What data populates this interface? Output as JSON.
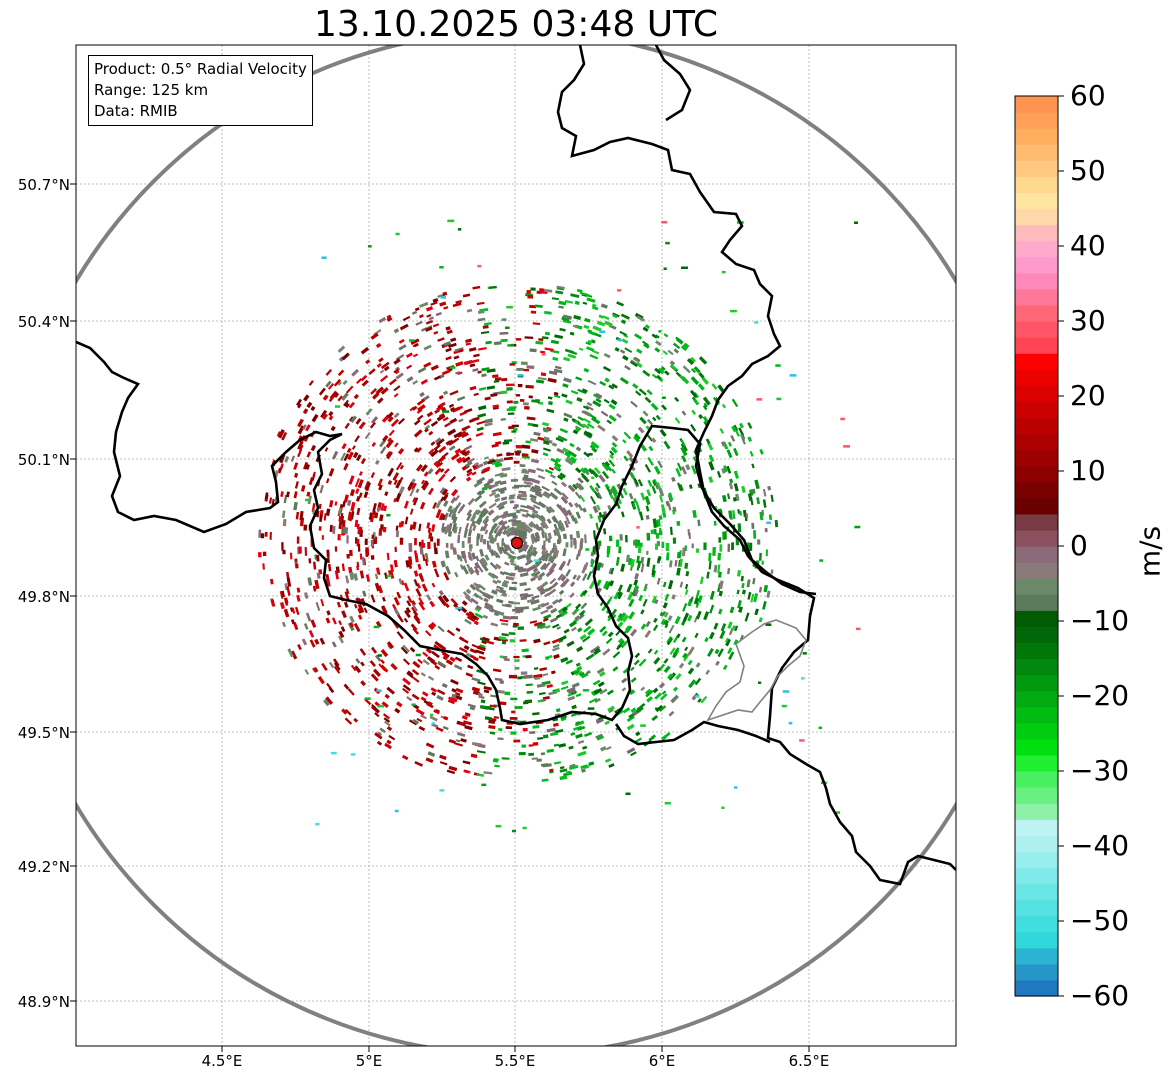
{
  "title": "13.10.2025 03:48 UTC",
  "info": {
    "product": "Product: 0.5° Radial Velocity",
    "range": "Range: 125 km",
    "source": "Data: RMIB"
  },
  "axes": {
    "lat_labels": [
      "50.7°N",
      "50.4°N",
      "50.1°N",
      "49.8°N",
      "49.5°N",
      "49.2°N",
      "48.9°N"
    ],
    "lon_labels": [
      "4.5°E",
      "5°E",
      "5.5°E",
      "6°E",
      "6.5°E"
    ]
  },
  "colorbar": {
    "unit": "m/s",
    "ticks": [
      "60",
      "50",
      "40",
      "30",
      "20",
      "10",
      "0",
      "−10",
      "−20",
      "−30",
      "−40",
      "−50",
      "−60"
    ],
    "min": -60,
    "max": 60,
    "colors": [
      "#1f78c0",
      "#2696c8",
      "#2ab4d2",
      "#30d8dc",
      "#40dede",
      "#55e2e2",
      "#6ae6e6",
      "#80eaea",
      "#98eeee",
      "#aef0f0",
      "#bff2f2",
      "#8ff0a8",
      "#6af080",
      "#48f060",
      "#20ee30",
      "#00e010",
      "#00cc10",
      "#00bb10",
      "#00aa10",
      "#009910",
      "#008810",
      "#007808",
      "#006808",
      "#005c04",
      "#5c7a5c",
      "#6a8a6a",
      "#8a7a7a",
      "#8a6a78",
      "#8a5060",
      "#7a3a44",
      "#6a0000",
      "#7a0000",
      "#8c0000",
      "#9c0000",
      "#ac0000",
      "#bc0000",
      "#cc0000",
      "#dc0000",
      "#ec0000",
      "#ff0000",
      "#ff4455",
      "#ff5566",
      "#ff6677",
      "#ff7799",
      "#ff88bb",
      "#ff99cc",
      "#ffaacc",
      "#ffbbbb",
      "#ffd8aa",
      "#ffe6a0",
      "#ffd890",
      "#ffca80",
      "#ffbc70",
      "#ffae60",
      "#ffa058",
      "#ff9450"
    ]
  },
  "radar": {
    "site_lat": 49.914,
    "site_lon": 5.505
  }
}
